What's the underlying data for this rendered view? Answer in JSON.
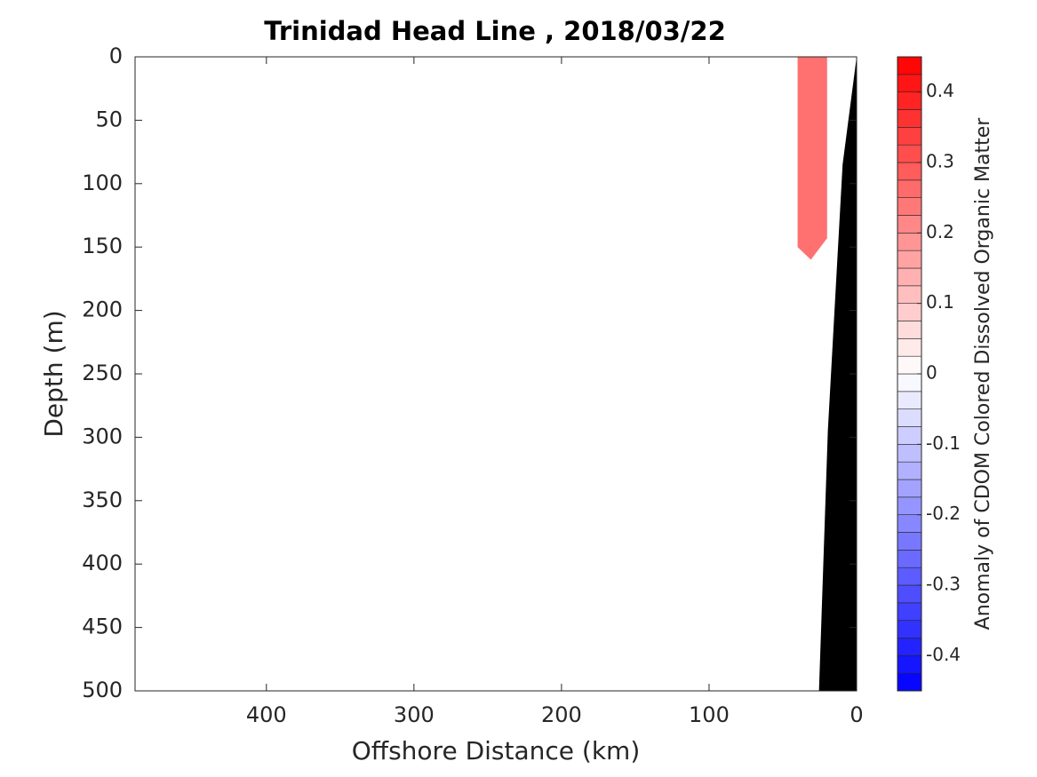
{
  "chart_data": {
    "type": "section",
    "title": "Trinidad Head Line , 2018/03/22",
    "xlabel": "Offshore Distance (km)",
    "ylabel": "Depth (m)",
    "xlim": [
      489,
      0
    ],
    "xticks": [
      400,
      300,
      200,
      100,
      0
    ],
    "ylim": [
      0,
      500
    ],
    "yticks": [
      0,
      50,
      100,
      150,
      200,
      250,
      300,
      350,
      400,
      450,
      500
    ],
    "patches": [
      {
        "distance": [
          40,
          40,
          31,
          20,
          20
        ],
        "depth": [
          0,
          150,
          160,
          143,
          0
        ],
        "value": 0.25
      }
    ],
    "bathymetry": {
      "distance": [
        0,
        9.5,
        19.5,
        25.5
      ],
      "depth": [
        0,
        85,
        295,
        500
      ],
      "color": "#000000"
    },
    "colorbar": {
      "label": "Anomaly of CDOM Colored Dissolved Organic Matter",
      "lim": [
        -0.45,
        0.45
      ],
      "level_step": 0.025,
      "ticks": [
        -0.4,
        -0.3,
        -0.2,
        -0.1,
        0,
        0.1,
        0.2,
        0.3,
        0.4
      ],
      "colormap": [
        "#0000ff",
        "#ffffff",
        "#ff0000"
      ]
    }
  }
}
